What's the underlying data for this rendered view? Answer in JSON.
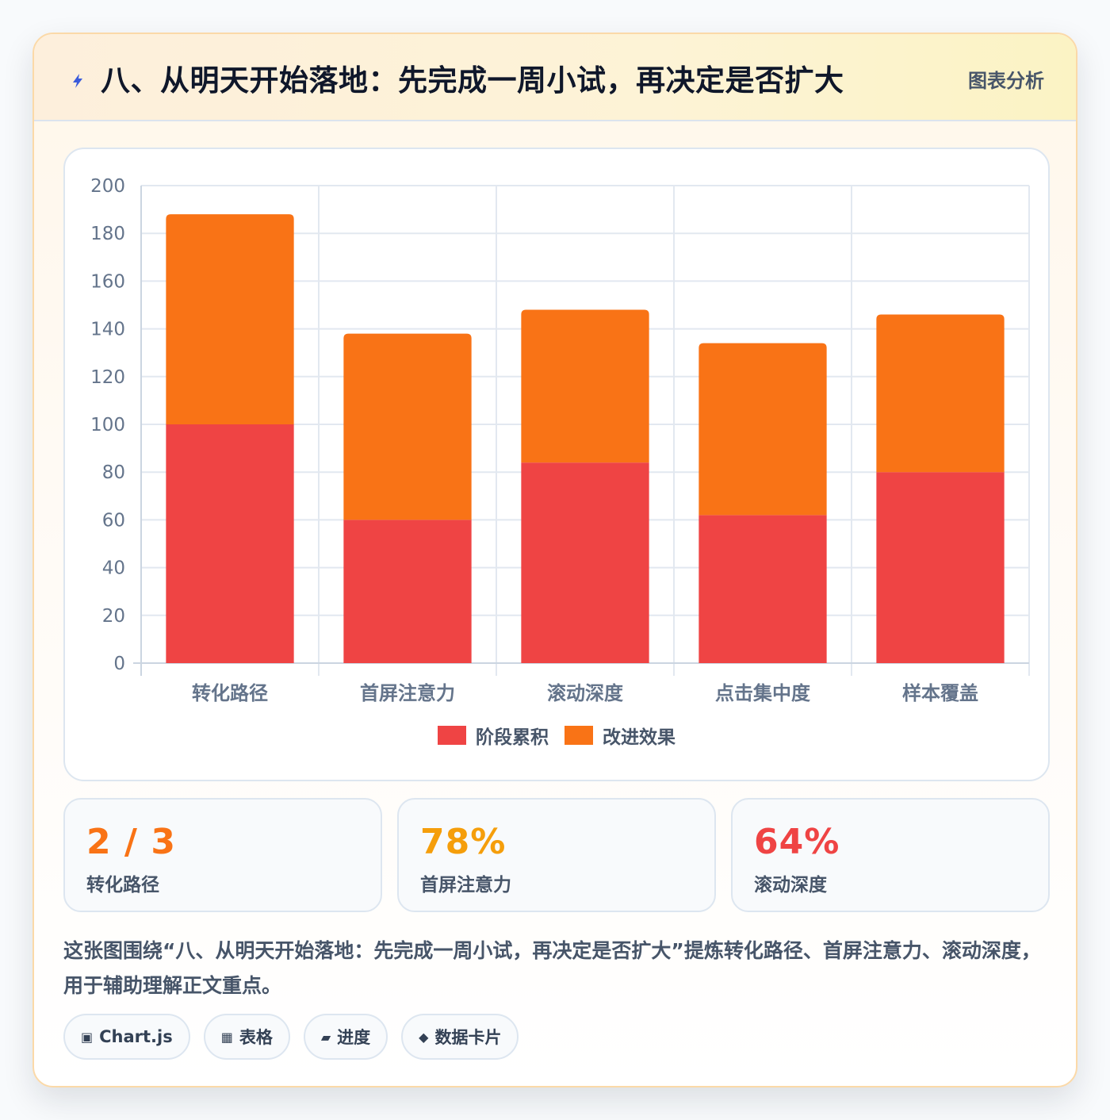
{
  "header": {
    "title": "八、从明天开始落地：先完成一周小试，再决定是否扩大",
    "tag": "图表分析",
    "icon": "lightning-icon"
  },
  "colors": {
    "series1": "#ef4444",
    "series2": "#f97316",
    "value1": "#f97316",
    "value2": "#f59e0b",
    "value3": "#ef4444"
  },
  "chart_data": {
    "type": "bar",
    "stacked": true,
    "categories": [
      "转化路径",
      "首屏注意力",
      "滚动深度",
      "点击集中度",
      "样本覆盖"
    ],
    "series": [
      {
        "name": "阶段累积",
        "values": [
          100,
          60,
          84,
          62,
          80
        ],
        "color": "#ef4444"
      },
      {
        "name": "改进效果",
        "values": [
          88,
          78,
          64,
          72,
          66
        ],
        "color": "#f97316"
      }
    ],
    "ylim": [
      0,
      200
    ],
    "yticks": [
      0,
      20,
      40,
      60,
      80,
      100,
      120,
      140,
      160,
      180,
      200
    ],
    "grid": true,
    "legend_position": "bottom"
  },
  "stats": [
    {
      "value": "2 / 3",
      "label": "转化路径"
    },
    {
      "value": "78%",
      "label": "首屏注意力"
    },
    {
      "value": "64%",
      "label": "滚动深度"
    }
  ],
  "description": "这张图围绕“八、从明天开始落地：先完成一周小试，再决定是否扩大”提炼转化路径、首屏注意力、滚动深度，用于辅助理解正文重点。",
  "tags": [
    {
      "icon": "▣",
      "icon_name": "chart-icon",
      "label": "Chart.js"
    },
    {
      "icon": "▦",
      "icon_name": "table-icon",
      "label": "表格"
    },
    {
      "icon": "▰",
      "icon_name": "progress-icon",
      "label": "进度"
    },
    {
      "icon": "◆",
      "icon_name": "data-card-icon",
      "label": "数据卡片"
    }
  ]
}
